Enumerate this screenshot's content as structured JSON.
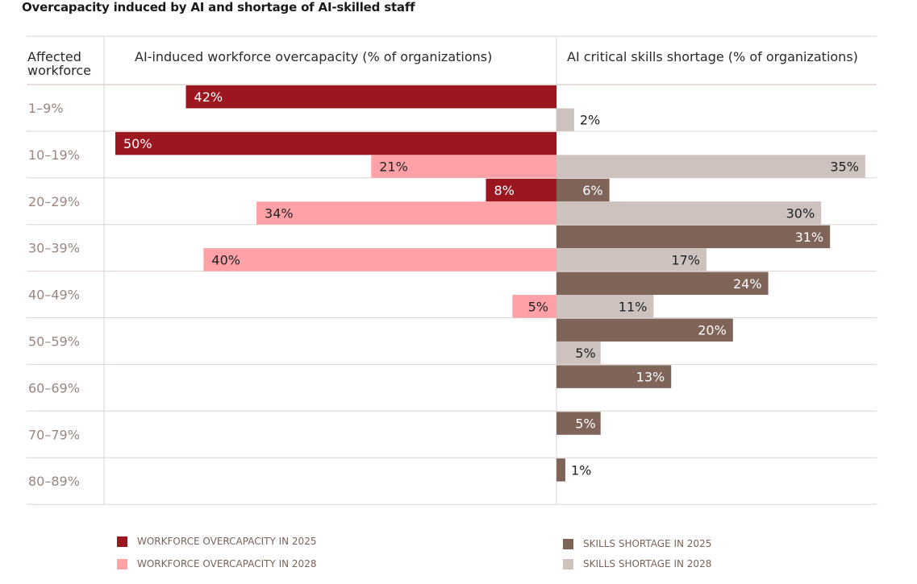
{
  "chart_data": {
    "type": "bar",
    "title": "Overcapacity induced by AI and shortage of AI-skilled staff",
    "row_header": "Affected workforce",
    "left_panel_title": "AI-induced workforce overcapacity (% of organizations)",
    "right_panel_title": "AI critical skills shortage (% of organizations)",
    "categories": [
      "1–9%",
      "10–19%",
      "20–29%",
      "30–39%",
      "40–49%",
      "50–59%",
      "60–69%",
      "70–79%",
      "80–89%"
    ],
    "series": [
      {
        "name": "WORKFORCE OVERCAPACITY IN 2025",
        "side": "left",
        "slot": "top",
        "color": "#9b161e",
        "label_color": "#ffffff",
        "values": [
          42,
          50,
          8,
          null,
          null,
          null,
          null,
          null,
          null
        ]
      },
      {
        "name": "WORKFORCE OVERCAPACITY IN 2028",
        "side": "left",
        "slot": "bottom",
        "color": "#ffa1a6",
        "label_color": "#222222",
        "values": [
          null,
          21,
          34,
          40,
          5,
          null,
          null,
          null,
          null
        ]
      },
      {
        "name": "SKILLS SHORTAGE IN 2025",
        "side": "right",
        "slot": "top",
        "color": "#7f6559",
        "label_color": "#ffffff",
        "values": [
          null,
          null,
          6,
          31,
          24,
          20,
          13,
          5,
          1
        ]
      },
      {
        "name": "SKILLS SHORTAGE IN 2028",
        "side": "right",
        "slot": "bottom",
        "color": "#cdc2be",
        "label_color": "#222222",
        "values": [
          2,
          35,
          30,
          17,
          11,
          5,
          null,
          null,
          null
        ]
      }
    ],
    "value_suffix": "%",
    "xlim_left": [
      0,
      50
    ],
    "xlim_right": [
      0,
      35
    ],
    "grid": true,
    "legend_position": "bottom"
  },
  "colors": {
    "grid": "#dcd3d0",
    "category_text": "#9a867e",
    "header_text": "#2a2a2a",
    "legend_text": "#7a6359"
  }
}
